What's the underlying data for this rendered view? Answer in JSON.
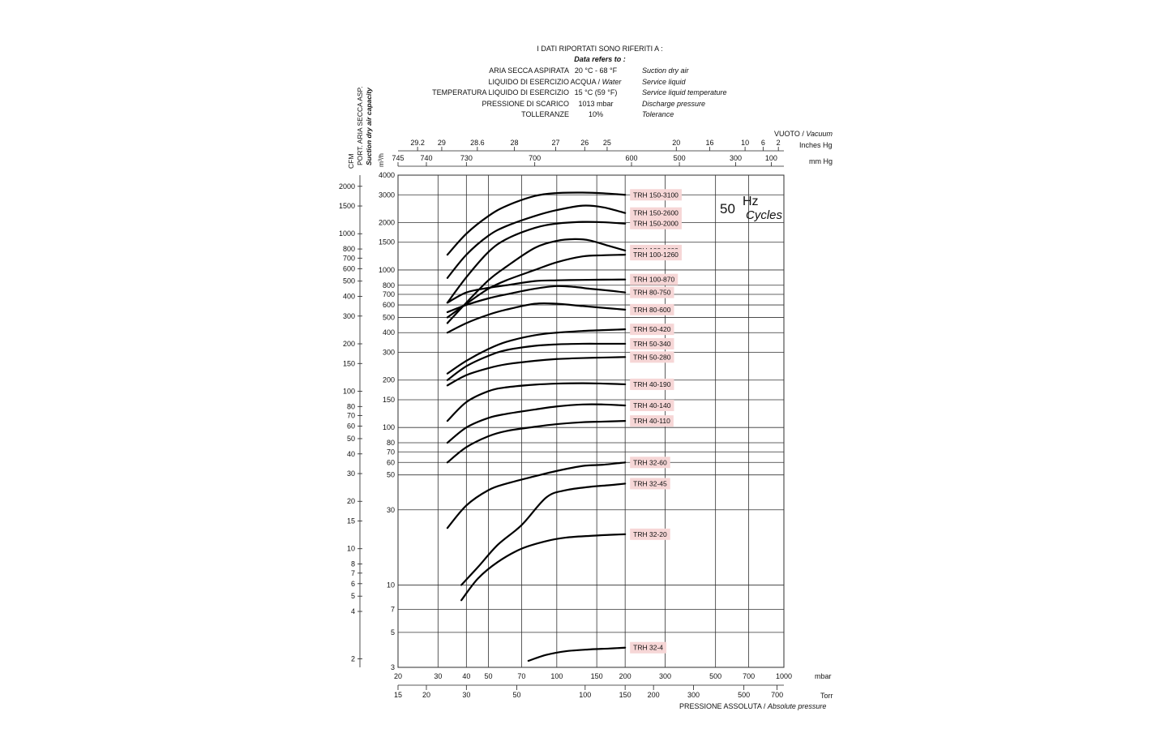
{
  "header": {
    "title": "I DATI RIPORTATI SONO RIFERITI A :",
    "subtitle": "Data refers to :",
    "rows": [
      {
        "it_label": "ARIA SECCA ASPIRATA",
        "value": "20 °C - 68 °F",
        "en_label": "Suction dry air"
      },
      {
        "it_label": "LIQUIDO DI ESERCIZIO",
        "value_it": "ACQUA /",
        "value_en": "Water",
        "en_label": "Service liquid"
      },
      {
        "it_label": "TEMPERATURA LIQUIDO DI ESERCIZIO",
        "value": "15 °C (59 °F)",
        "en_label": "Service liquid temperature"
      },
      {
        "it_label": "PRESSIONE DI SCARICO",
        "value": "1013 mbar",
        "en_label": "Discharge pressure"
      },
      {
        "it_label": "TOLLERANZE",
        "value": "10%",
        "en_label": "Tolerance"
      }
    ]
  },
  "axes": {
    "y_cfm_label": "CFM",
    "y_it_label": "PORT. ARIA SECCA ASP.",
    "y_en_label": "Suction dry air capacity",
    "y_m3h_label": "m³/h",
    "vacuum_it": "VUOTO /",
    "vacuum_en": "Vacuum",
    "inches_hg_unit": "Inches Hg",
    "mm_hg_unit": "mm Hg",
    "mbar_unit": "mbar",
    "torr_unit": "Torr",
    "abs_it": "PRESSIONE ASSOLUTA /",
    "abs_en": "Absolute pressure"
  },
  "frequency": {
    "value": "50",
    "unit": "Hz",
    "unit_en": "Cycles"
  },
  "chart_data": {
    "type": "line",
    "x_scale": "log",
    "y_scale": "log",
    "xlabel": "mbar",
    "ylabel": "m³/h",
    "xlim": [
      20,
      1000
    ],
    "ylim": [
      3,
      4000
    ],
    "grid": true,
    "x_ticks_mbar": [
      "20",
      "30",
      "40",
      "50",
      "70",
      "100",
      "150",
      "200",
      "300",
      "500",
      "700",
      "1000"
    ],
    "x_ticks_torr": [
      "15",
      "20",
      "30",
      "50",
      "100",
      "150",
      "200",
      "300",
      "500",
      "700"
    ],
    "x_ticks_mmhg": [
      "745",
      "740",
      "730",
      "700",
      "600",
      "500",
      "300",
      "100"
    ],
    "x_ticks_inhg": [
      "29.2",
      "29",
      "28.6",
      "28",
      "27",
      "26",
      "25",
      "20",
      "16",
      "10",
      "6",
      "2"
    ],
    "y_ticks_m3h": [
      "3",
      "5",
      "7",
      "10",
      "30",
      "50",
      "60",
      "70",
      "80",
      "100",
      "150",
      "200",
      "300",
      "400",
      "500",
      "600",
      "700",
      "800",
      "1000",
      "1500",
      "2000",
      "3000",
      "4000"
    ],
    "y_ticks_cfm": [
      "2",
      "4",
      "5",
      "6",
      "7",
      "8",
      "10",
      "15",
      "20",
      "30",
      "40",
      "50",
      "60",
      "70",
      "80",
      "100",
      "150",
      "200",
      "300",
      "400",
      "500",
      "600",
      "700",
      "800",
      "1000",
      "1500",
      "2000"
    ],
    "series": [
      {
        "name": "TRH 150-3100",
        "x": [
          33,
          40,
          50,
          60,
          80,
          100,
          130,
          160,
          200
        ],
        "y": [
          1250,
          1700,
          2200,
          2550,
          2950,
          3080,
          3100,
          3070,
          3000
        ]
      },
      {
        "name": "TRH 150-2600",
        "x": [
          33,
          40,
          50,
          60,
          80,
          100,
          130,
          160,
          200
        ],
        "y": [
          890,
          1250,
          1650,
          1900,
          2200,
          2400,
          2560,
          2500,
          2300
        ]
      },
      {
        "name": "TRH 150-2000",
        "x": [
          33,
          40,
          50,
          60,
          80,
          100,
          130,
          160,
          200
        ],
        "y": [
          620,
          900,
          1300,
          1570,
          1850,
          1970,
          2020,
          2010,
          1970
        ]
      },
      {
        "name": "TRH 100-1600",
        "x": [
          33,
          40,
          50,
          60,
          80,
          100,
          120,
          140,
          170,
          200
        ],
        "y": [
          460,
          620,
          860,
          1050,
          1380,
          1530,
          1570,
          1540,
          1420,
          1330
        ]
      },
      {
        "name": "TRH 100-1260",
        "x": [
          33,
          40,
          50,
          60,
          80,
          100,
          130,
          160,
          200
        ],
        "y": [
          500,
          610,
          760,
          860,
          1000,
          1120,
          1220,
          1240,
          1250
        ]
      },
      {
        "name": "TRH 100-870",
        "x": [
          33,
          40,
          50,
          60,
          80,
          100,
          130,
          160,
          200
        ],
        "y": [
          620,
          720,
          770,
          800,
          850,
          860,
          865,
          868,
          870
        ]
      },
      {
        "name": "TRH 80-750",
        "x": [
          33,
          40,
          50,
          60,
          80,
          100,
          120,
          140,
          170,
          200
        ],
        "y": [
          540,
          600,
          660,
          700,
          760,
          790,
          780,
          760,
          740,
          720
        ]
      },
      {
        "name": "TRH 80-600",
        "x": [
          33,
          40,
          50,
          60,
          80,
          100,
          130,
          160,
          200
        ],
        "y": [
          400,
          460,
          520,
          560,
          610,
          610,
          590,
          575,
          560
        ]
      },
      {
        "name": "TRH 50-420",
        "x": [
          33,
          40,
          50,
          60,
          80,
          100,
          130,
          160,
          200
        ],
        "y": [
          220,
          265,
          315,
          350,
          385,
          400,
          410,
          415,
          420
        ]
      },
      {
        "name": "TRH 50-340",
        "x": [
          33,
          40,
          50,
          60,
          80,
          100,
          130,
          160,
          200
        ],
        "y": [
          200,
          245,
          285,
          310,
          330,
          337,
          340,
          340,
          340
        ]
      },
      {
        "name": "TRH 50-280",
        "x": [
          33,
          40,
          50,
          60,
          80,
          100,
          130,
          160,
          200
        ],
        "y": [
          185,
          215,
          238,
          252,
          265,
          272,
          276,
          278,
          280
        ]
      },
      {
        "name": "TRH 40-190",
        "x": [
          33,
          40,
          50,
          60,
          80,
          100,
          130,
          160,
          200
        ],
        "y": [
          110,
          145,
          170,
          180,
          187,
          190,
          191,
          190,
          188
        ]
      },
      {
        "name": "TRH 40-140",
        "x": [
          33,
          40,
          50,
          60,
          80,
          100,
          130,
          160,
          200
        ],
        "y": [
          80,
          100,
          115,
          122,
          130,
          136,
          140,
          140,
          138
        ]
      },
      {
        "name": "TRH 40-110",
        "x": [
          33,
          40,
          50,
          60,
          80,
          100,
          130,
          160,
          200
        ],
        "y": [
          60,
          75,
          88,
          95,
          101,
          105,
          108,
          109,
          110
        ]
      },
      {
        "name": "TRH 32-60",
        "x": [
          33,
          40,
          50,
          60,
          80,
          100,
          130,
          160,
          200
        ],
        "y": [
          23,
          32,
          40,
          44,
          49,
          53,
          57,
          58,
          60
        ]
      },
      {
        "name": "TRH 32-45",
        "x": [
          38,
          45,
          55,
          70,
          90,
          110,
          140,
          170,
          200
        ],
        "y": [
          10,
          13,
          18,
          24,
          36,
          40,
          42,
          43,
          44
        ]
      },
      {
        "name": "TRH 32-20",
        "x": [
          38,
          45,
          55,
          70,
          90,
          110,
          140,
          170,
          200
        ],
        "y": [
          8,
          11,
          14,
          17,
          19,
          20,
          20.5,
          20.8,
          21
        ]
      },
      {
        "name": "TRH 32-4",
        "x": [
          75,
          90,
          110,
          140,
          170,
          200
        ],
        "y": [
          3.3,
          3.6,
          3.8,
          3.9,
          3.95,
          4
        ]
      }
    ]
  }
}
